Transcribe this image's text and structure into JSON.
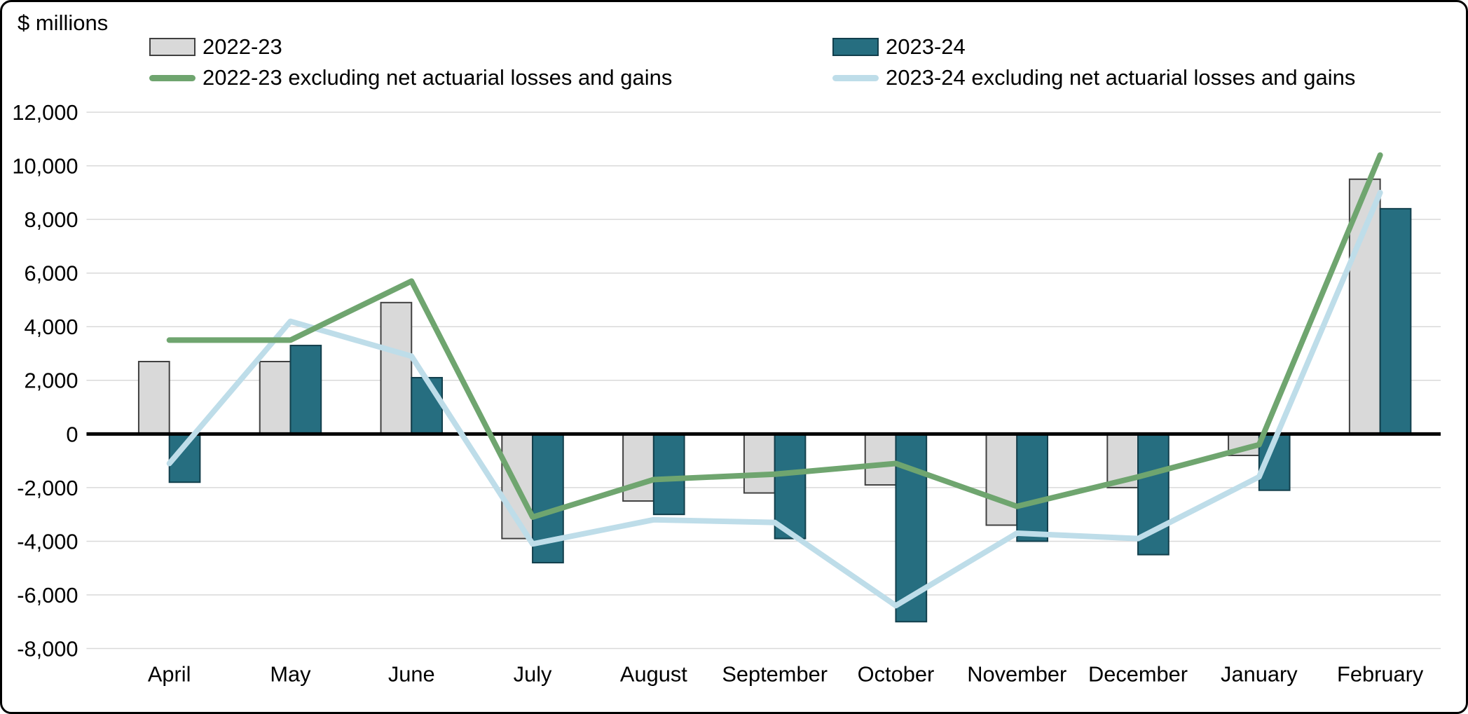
{
  "chart_data": {
    "type": "bar",
    "title": "",
    "ylabel": "$ millions",
    "xlabel": "",
    "ylim": [
      -8000,
      12000
    ],
    "ytick_step": 2000,
    "grid": true,
    "legend_position": "top",
    "categories": [
      "April",
      "May",
      "June",
      "July",
      "August",
      "September",
      "October",
      "November",
      "December",
      "January",
      "February"
    ],
    "series": [
      {
        "name": "2022-23",
        "type": "bar",
        "color": "#d9d9d9",
        "border": "#404040",
        "values": [
          2700,
          2700,
          4900,
          -3900,
          -2500,
          -2200,
          -1900,
          -3400,
          -2000,
          -800,
          9500
        ]
      },
      {
        "name": "2023-24",
        "type": "bar",
        "color": "#266e80",
        "border": "#123f4c",
        "values": [
          -1800,
          3300,
          2100,
          -4800,
          -3000,
          -3900,
          -7000,
          -4000,
          -4500,
          -2100,
          8400
        ]
      },
      {
        "name": "2022-23 excluding net actuarial losses and gains",
        "type": "line",
        "color": "#6fa56f",
        "values": [
          3500,
          3500,
          5700,
          -3100,
          -1700,
          -1500,
          -1100,
          -2700,
          -1600,
          -400,
          10400
        ]
      },
      {
        "name": "2023-24 excluding net actuarial losses and gains",
        "type": "line",
        "color": "#bedde9",
        "values": [
          -1100,
          4200,
          2900,
          -4100,
          -3200,
          -3300,
          -6400,
          -3700,
          -3900,
          -1600,
          9000
        ]
      }
    ]
  }
}
